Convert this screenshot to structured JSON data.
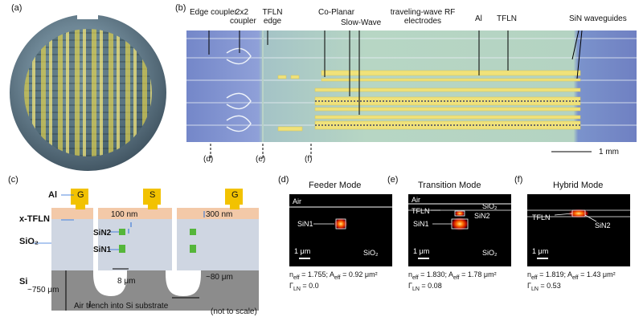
{
  "panels": {
    "a": "(a)",
    "b": "(b)",
    "c": "(c)",
    "d": "(d)",
    "e": "(e)",
    "f": "(f)"
  },
  "chip_labels": {
    "edge_coupler": "Edge coupler",
    "coupler_2x2": "2x2 coupler",
    "tfln_edge": "TFLN edge",
    "coplanar": "Co-Planar",
    "slow_wave": "Slow-Wave",
    "traveling_wave": "traveling-wave RF electrodes",
    "al": "Al",
    "tfln": "TFLN",
    "sin_waveguides": "SiN waveguides",
    "scale": "1 mm",
    "marker_d": "(d)",
    "marker_e": "(e)",
    "marker_f": "(f)"
  },
  "cross_section": {
    "g_left": "G",
    "s": "S",
    "g_right": "G",
    "al": "Al",
    "xtfln": "x-TFLN",
    "sio2": "SiO₂",
    "sin2": "SiN2",
    "sin1": "SiN1",
    "si": "Si",
    "dim_100nm": "100 nm",
    "dim_300nm": "300 nm",
    "dim_750um": "~750 μm",
    "dim_8um": "8 μm",
    "dim_80um": "~80 μm",
    "trench": "Air trench into Si substrate",
    "scale_note": "(not to scale)"
  },
  "modes": [
    {
      "title": "Feeder Mode",
      "air": "Air",
      "sin1": "SiN1",
      "scale": "1 μm",
      "sio2": "SiO₂",
      "neff": "n",
      "neff_sub": "eff",
      "neff_val": " = 1.755; A",
      "aeff_sub": "eff",
      "aeff_val": " = 0.92 μm²",
      "gamma": "Γ",
      "gamma_sub": "LN",
      "gamma_val": " = 0.0"
    },
    {
      "title": "Transition Mode",
      "air": "Air",
      "tfln": "TFLN",
      "sio2_top": "SiO₂",
      "sin2": "SiN2",
      "sin1": "SiN1",
      "scale": "1 μm",
      "sio2": "SiO₂",
      "neff": "n",
      "neff_sub": "eff",
      "neff_val": " = 1.830; A",
      "aeff_sub": "eff",
      "aeff_val": " = 1.78 μm²",
      "gamma": "Γ",
      "gamma_sub": "LN",
      "gamma_val": " = 0.08"
    },
    {
      "title": "Hybrid Mode",
      "tfln": "TFLN",
      "sin2": "SiN2",
      "scale": "1 μm",
      "neff": "n",
      "neff_sub": "eff",
      "neff_val": " = 1.819; A",
      "aeff_sub": "eff",
      "aeff_val": " = 1.43 μm²",
      "gamma": "Γ",
      "gamma_sub": "LN",
      "gamma_val": " = 0.53"
    }
  ],
  "colors": {
    "gold": "#f2c200",
    "tfln": "#f3c9a8",
    "sio2": "#cfd6e2",
    "si": "#8c8c8c",
    "sin": "#55b63a"
  }
}
